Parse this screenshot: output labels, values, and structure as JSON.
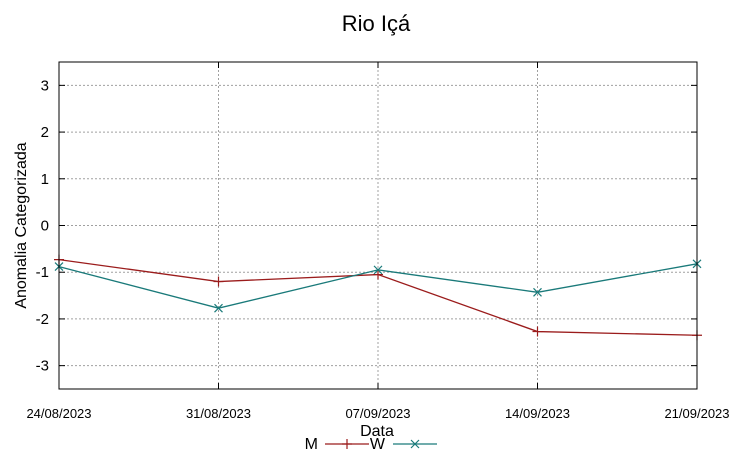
{
  "chart_data": {
    "type": "line",
    "title": "Rio Içá",
    "xlabel": "Data",
    "ylabel": "Anomalia Categorizada",
    "categories": [
      "24/08/2023",
      "31/08/2023",
      "07/09/2023",
      "14/09/2023",
      "21/09/2023"
    ],
    "x": [
      0,
      1,
      2,
      3,
      4
    ],
    "ylim": [
      -3.5,
      3.5
    ],
    "yticks": [
      "3",
      "2",
      "1",
      "0",
      "-1",
      "-2",
      "-3"
    ],
    "grid": true,
    "legend_position": "bottom-center",
    "series": [
      {
        "name": "M",
        "color": "#9b1c1c",
        "marker": "plus",
        "values": [
          -0.73,
          -1.2,
          -1.05,
          -2.27,
          -2.35
        ]
      },
      {
        "name": "W",
        "color": "#1a7a7a",
        "marker": "x",
        "values": [
          -0.88,
          -1.77,
          -0.95,
          -1.43,
          -0.82
        ]
      }
    ]
  }
}
